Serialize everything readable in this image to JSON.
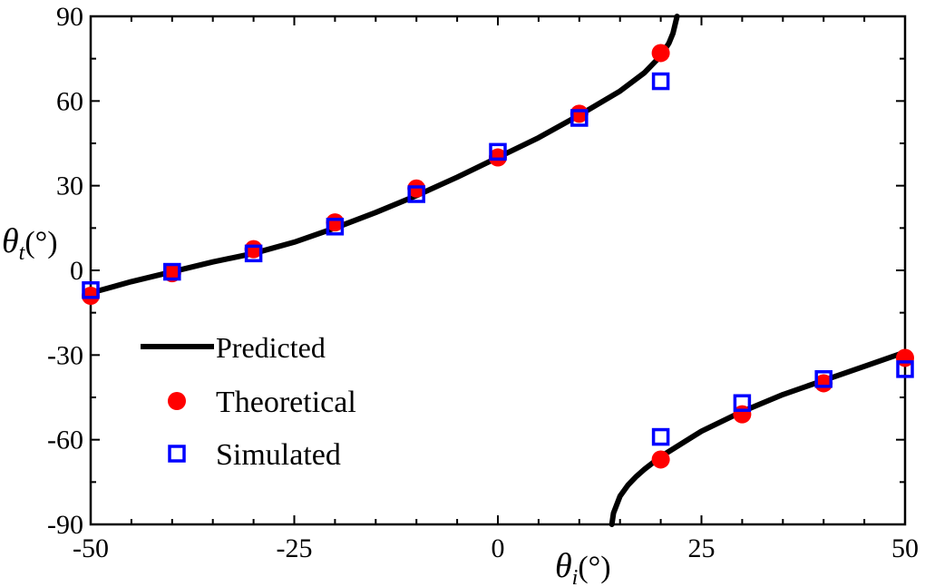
{
  "chart_data": {
    "type": "scatter",
    "title": "",
    "xlabel": "θi(°)",
    "ylabel": "θt(°)",
    "xlabel_parts": {
      "symbol": "θ",
      "sub": "i",
      "unit": "(°)"
    },
    "ylabel_parts": {
      "symbol": "θ",
      "sub": "t",
      "unit": "(°)"
    },
    "xlim": [
      -50,
      50
    ],
    "ylim": [
      -90,
      90
    ],
    "xticks": [
      -50,
      -25,
      0,
      25,
      50
    ],
    "yticks": [
      -90,
      -60,
      -30,
      0,
      30,
      60,
      90
    ],
    "xtick_labels": [
      "-50",
      "-25",
      "0",
      "25",
      "50"
    ],
    "ytick_labels": [
      "-90",
      "-60",
      "-30",
      "0",
      "30",
      "60",
      "90"
    ],
    "grid": false,
    "legend_position": "bottom-left",
    "series": [
      {
        "name": "Predicted",
        "kind": "line",
        "color": "#000000",
        "branches": [
          {
            "x": [
              -50,
              -45,
              -40,
              -35,
              -30,
              -25,
              -20,
              -15,
              -10,
              -5,
              0,
              5,
              10,
              15,
              18,
              20,
              21,
              21.5,
              22
            ],
            "y": [
              -8,
              -4,
              -0.5,
              3,
              6,
              10,
              15,
              20.5,
              26.5,
              33,
              40,
              47,
              55,
              63.5,
              70,
              76,
              80.5,
              84,
              90
            ]
          },
          {
            "x": [
              14,
              14.2,
              15,
              16,
              17,
              18,
              20,
              25,
              30,
              35,
              40,
              45,
              50
            ],
            "y": [
              -90,
              -86,
              -80,
              -76,
              -73,
              -70.5,
              -66,
              -57,
              -50,
              -44,
              -39,
              -34,
              -29
            ]
          }
        ]
      },
      {
        "name": "Theoretical",
        "kind": "marker",
        "marker": "circle",
        "color": "#ff0000",
        "x": [
          -50,
          -40,
          -30,
          -20,
          -10,
          0,
          10,
          20,
          20,
          30,
          40,
          50
        ],
        "y": [
          -9,
          -1,
          7.5,
          17,
          29,
          40,
          55.5,
          77,
          -67,
          -51,
          -40,
          -31
        ]
      },
      {
        "name": "Simulated",
        "kind": "marker",
        "marker": "square-open",
        "color": "#0000ff",
        "x": [
          -50,
          -40,
          -30,
          -20,
          -10,
          0,
          10,
          20,
          20,
          30,
          40,
          50
        ],
        "y": [
          -7,
          -0.5,
          6,
          15.5,
          27,
          42,
          54,
          67,
          -59,
          -47,
          -38.5,
          -35
        ]
      }
    ],
    "legend": [
      {
        "label": "Predicted",
        "kind": "line"
      },
      {
        "label": "Theoretical",
        "kind": "circle"
      },
      {
        "label": "Simulated",
        "kind": "square-open"
      }
    ]
  }
}
